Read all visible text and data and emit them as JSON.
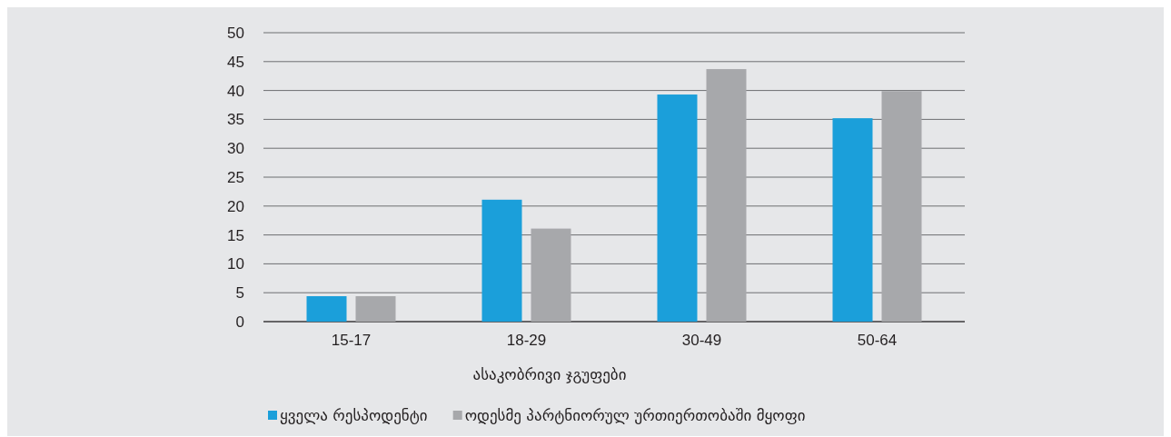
{
  "chart_data": {
    "type": "bar",
    "xlabel": "ასაკობრივი ჯგუფები",
    "categories": [
      "15-17",
      "18-29",
      "30-49",
      "50-64"
    ],
    "series": [
      {
        "name": "ყველა რესპოდენტი",
        "color": "#1b9fda",
        "values": [
          4.4,
          21.1,
          39.3,
          35.2
        ]
      },
      {
        "name": "ოდესმე პარტნიორულ ურთიერთობაში მყოფი",
        "color": "#a7a8ab",
        "values": [
          4.4,
          16.1,
          43.7,
          39.9
        ]
      }
    ],
    "ylim": [
      0,
      50
    ],
    "yticks": [
      0,
      5,
      10,
      15,
      20,
      25,
      30,
      35,
      40,
      45,
      50
    ],
    "grid": "y",
    "legend": "bottom left"
  }
}
